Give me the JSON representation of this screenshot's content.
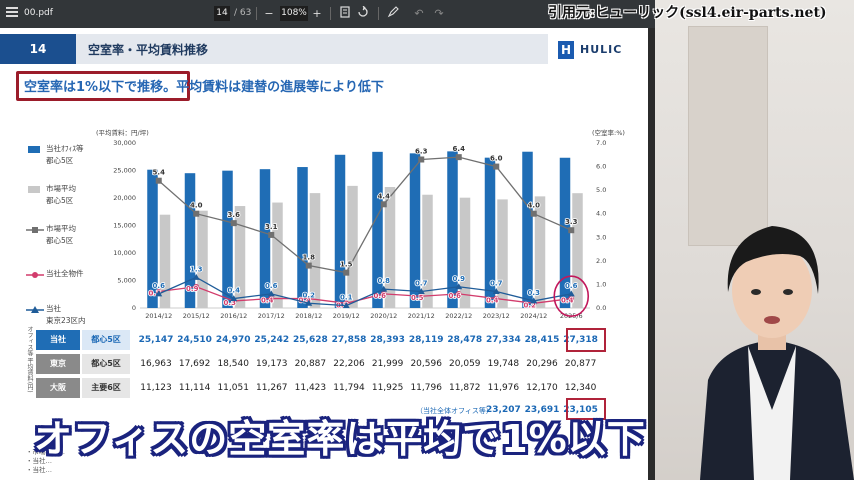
{
  "viewer": {
    "file_name": "00.pdf",
    "page_current": "14",
    "page_total": "/ 63",
    "zoom": "108%",
    "zoom_out": "−",
    "zoom_in": "+",
    "icons": [
      "menu-icon",
      "fit-page-icon",
      "rotate-icon",
      "annotate-icon",
      "undo-icon",
      "redo-icon"
    ]
  },
  "slide": {
    "number": "14",
    "title": "空室率・平均賃料推移",
    "logo_text": "HULIC",
    "logo_mark": "H",
    "headline_boxed": "空室率は1%以下で推移。",
    "headline_rest": "平均賃料は建替の進展等により低下",
    "total_label": "（当社全体オフィス等）",
    "notes": [
      "・市場平均…",
      "・当社…",
      "・当社…"
    ]
  },
  "legend": [
    {
      "label": "当社ｵﾌｨｽ等",
      "label2": "都心5区",
      "color": "#1f6db5",
      "kind": "bar"
    },
    {
      "label": "市場平均",
      "label2": "都心5区",
      "color": "#c8c8c8",
      "kind": "bar"
    },
    {
      "label": "市場平均",
      "label2": "都心5区",
      "color": "#707070",
      "kind": "line-square"
    },
    {
      "label": "当社全物件",
      "label2": "",
      "color": "#d23c6c",
      "kind": "line-circle"
    },
    {
      "label": "当社",
      "label2": "東京23区内",
      "color": "#1f5c99",
      "kind": "line-triangle"
    }
  ],
  "chart_data": {
    "type": "bar",
    "categories": [
      "2014/12",
      "2015/12",
      "2016/12",
      "2017/12",
      "2018/12",
      "2019/12",
      "2020/12",
      "2021/12",
      "2022/12",
      "2023/12",
      "2024/12",
      "2025/6"
    ],
    "ylabel": "(平均賃料：円/坪)",
    "y2label": "(空室率:%)",
    "ylim": [
      0,
      30000
    ],
    "y2lim": [
      0,
      7.0
    ],
    "yticks": [
      "0",
      "5,000",
      "10,000",
      "15,000",
      "20,000",
      "25,000",
      "30,000"
    ],
    "y2ticks": [
      "0.0",
      "1.0",
      "2.0",
      "3.0",
      "4.0",
      "5.0",
      "6.0",
      "7.0"
    ],
    "bar_series": [
      {
        "name": "当社ｵﾌｨｽ等 都心5区",
        "color": "#1f6db5",
        "values": [
          25147,
          24510,
          24970,
          25242,
          25628,
          27858,
          28393,
          28119,
          28478,
          27334,
          28415,
          27318
        ]
      },
      {
        "name": "市場平均 都心5区",
        "color": "#c8c8c8",
        "values": [
          16963,
          17692,
          18540,
          19173,
          20887,
          22206,
          21999,
          20596,
          20059,
          19748,
          20296,
          20877
        ]
      }
    ],
    "line_series": [
      {
        "name": "市場平均 都心5区",
        "color": "#707070",
        "marker": "square",
        "values": [
          5.4,
          4.0,
          3.6,
          3.1,
          1.8,
          1.5,
          4.4,
          6.3,
          6.4,
          6.0,
          4.0,
          3.3
        ],
        "labels": [
          "5.4",
          "4.0",
          "3.6",
          "3.1",
          "1.8",
          "1.5",
          "4.4",
          "6.3",
          "6.4",
          "6.0",
          "4.0",
          "3.3"
        ]
      },
      {
        "name": "当社全物件",
        "color": "#d23c6c",
        "marker": "circle",
        "values": [
          0.7,
          0.9,
          0.3,
          0.4,
          0.4,
          0.2,
          0.6,
          0.5,
          0.6,
          0.4,
          0.2,
          0.4
        ],
        "labels": [
          "0.7",
          "0.9",
          "0.3",
          "0.4",
          "0.4",
          "0.2",
          "0.6",
          "0.5",
          "0.6",
          "0.4",
          "0.2",
          "0.4"
        ]
      },
      {
        "name": "当社 東京23区内",
        "color": "#1f5c99",
        "marker": "triangle",
        "values": [
          0.6,
          1.3,
          0.4,
          0.6,
          0.2,
          0.1,
          0.8,
          0.7,
          0.9,
          0.7,
          0.3,
          0.6
        ],
        "labels": [
          "0.6",
          "1.3",
          "0.4",
          "0.6",
          "0.2",
          "0.1",
          "0.8",
          "0.7",
          "0.9",
          "0.7",
          "0.3",
          "0.6"
        ]
      }
    ]
  },
  "table": {
    "side_label": "オフィス等 平均賃料(円)",
    "rows": [
      {
        "company": "当社",
        "area": "都心5区",
        "values": [
          "25,147",
          "24,510",
          "24,970",
          "25,242",
          "25,628",
          "27,858",
          "28,393",
          "28,119",
          "28,478",
          "27,334",
          "28,415",
          "27,318"
        ]
      },
      {
        "company": "東京",
        "area": "都心5区",
        "values": [
          "16,963",
          "17,692",
          "18,540",
          "19,173",
          "20,887",
          "22,206",
          "21,999",
          "20,596",
          "20,059",
          "19,748",
          "20,296",
          "20,877"
        ]
      },
      {
        "company": "大阪",
        "area": "主要6区",
        "values": [
          "11,123",
          "11,114",
          "11,051",
          "11,267",
          "11,423",
          "11,794",
          "11,925",
          "11,796",
          "11,872",
          "11,976",
          "12,170",
          "12,340"
        ]
      }
    ],
    "totals": [
      "23,207",
      "23,691",
      "23,105"
    ]
  },
  "caption": "オフィスの空室率は平均で1%以下",
  "source_credit": "引用元:ヒューリック(ssl4.eir-parts.net)",
  "colors": {
    "accent": "#1b4f8f",
    "highlight": "#b0233a",
    "caption_outline": "#1a237e"
  }
}
